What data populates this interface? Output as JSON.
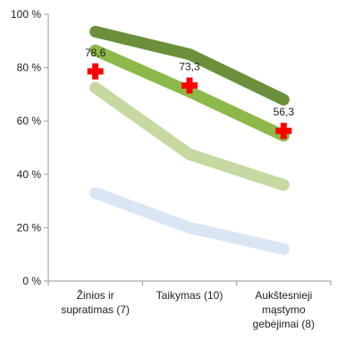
{
  "chart_data": {
    "type": "line",
    "title": "",
    "xlabel": "",
    "ylabel": "",
    "ylim": [
      0,
      100
    ],
    "yticks": [
      0,
      20,
      40,
      60,
      80,
      100
    ],
    "ytick_suffix": " %",
    "grid": false,
    "categories": [
      [
        "Žinios ir",
        "supratimas (7)"
      ],
      [
        "Taikymas (10)"
      ],
      [
        "Aukštesnieji",
        "mąstymo",
        "gebėjimai (8)"
      ]
    ],
    "bands": [
      {
        "color": "#6b8f3a",
        "values": [
          93.5,
          85,
          68
        ]
      },
      {
        "color": "#8db84a",
        "values": [
          86.5,
          71,
          54.5
        ]
      },
      {
        "color": "#c5d9a0",
        "values": [
          72.5,
          47.5,
          36
        ]
      },
      {
        "color": "#dbe6f4",
        "values": [
          33,
          20,
          12
        ]
      }
    ],
    "markers": {
      "shape": "plus",
      "color": "#ff0000",
      "values": [
        78.6,
        73.3,
        56.3
      ],
      "labels": [
        "78,6",
        "73,3",
        "56,3"
      ]
    }
  }
}
